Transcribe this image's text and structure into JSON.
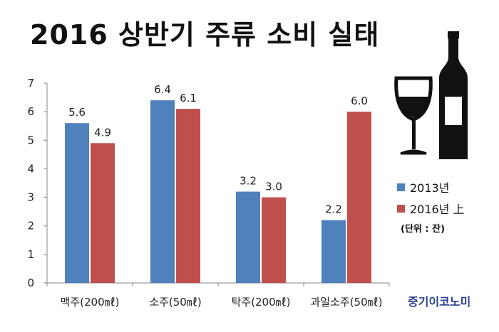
{
  "title": "2016 상반기 주류 소비 실태",
  "unit_note": "(단위 : 잔)",
  "brand": "중기이코노미",
  "colors": {
    "series_2013": "#4f81bd",
    "series_2016": "#c0504d"
  },
  "icons": [
    "wine-glass-icon",
    "wine-bottle-icon"
  ],
  "chart_data": {
    "type": "bar",
    "title": "2016 상반기 주류 소비 실태",
    "categories": [
      "맥주(200㎖)",
      "소주(50㎖)",
      "탁주(200㎖)",
      "과일소주(50㎖)"
    ],
    "series": [
      {
        "name": "2013년",
        "values": [
          5.6,
          6.4,
          3.2,
          2.2
        ]
      },
      {
        "name": "2016년 上",
        "values": [
          4.9,
          6.1,
          3.0,
          6.0
        ]
      }
    ],
    "ylim": [
      0,
      7
    ],
    "yticks": [
      "0",
      "1",
      "2",
      "3",
      "4",
      "5",
      "6",
      "7"
    ],
    "data_labels": [
      [
        "5.6",
        "6.4",
        "3.2",
        "2.2"
      ],
      [
        "4.9",
        "6.1",
        "3.0",
        "6.0"
      ]
    ],
    "xlabel": "",
    "ylabel": "",
    "grid": false,
    "legend": "right",
    "unit": "잔"
  }
}
